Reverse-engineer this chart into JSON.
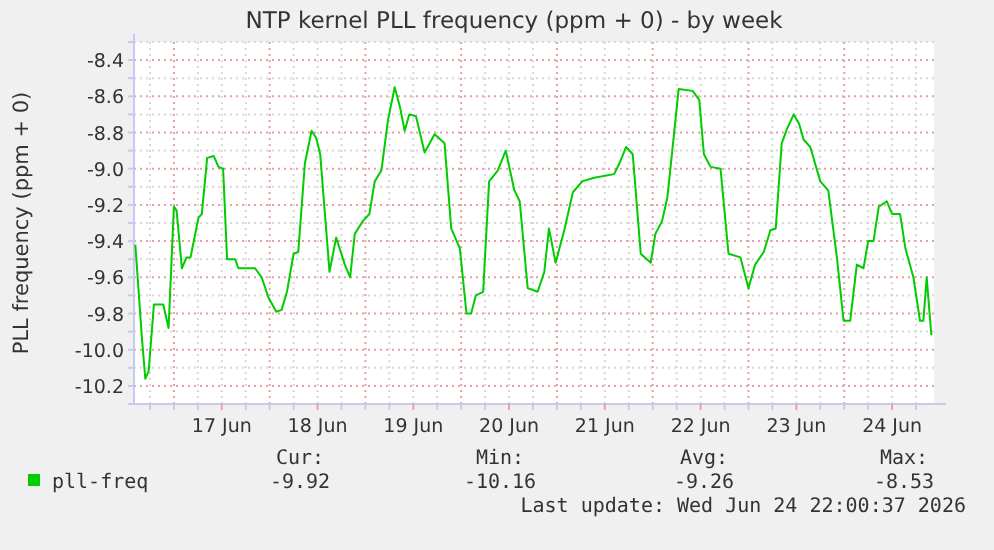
{
  "chart_data": {
    "type": "line",
    "title": "NTP kernel PLL frequency (ppm + 0) - by week",
    "ylabel": "PLL frequency (ppm + 0)",
    "x": [
      "2026-06-16T14:20",
      "2026-06-16T16:00",
      "2026-06-16T16:50",
      "2026-06-16T17:40",
      "2026-06-16T19:00",
      "2026-06-16T21:20",
      "2026-06-16T22:40",
      "2026-06-17T00:00",
      "2026-06-17T00:40",
      "2026-06-17T02:00",
      "2026-06-17T03:10",
      "2026-06-17T04:10",
      "2026-06-17T06:10",
      "2026-06-17T07:00",
      "2026-06-17T08:20",
      "2026-06-17T10:00",
      "2026-06-17T11:10",
      "2026-06-17T12:20",
      "2026-06-17T13:20",
      "2026-06-17T15:20",
      "2026-06-17T16:10",
      "2026-06-17T20:20",
      "2026-06-17T22:00",
      "2026-06-17T23:40",
      "2026-06-18T01:40",
      "2026-06-18T03:00",
      "2026-06-18T04:20",
      "2026-06-18T06:00",
      "2026-06-18T07:10",
      "2026-06-18T08:50",
      "2026-06-18T10:30",
      "2026-06-18T11:40",
      "2026-06-18T12:40",
      "2026-06-18T15:00",
      "2026-06-18T16:40",
      "2026-06-18T18:50",
      "2026-06-18T20:10",
      "2026-06-18T21:20",
      "2026-06-18T23:20",
      "2026-06-19T01:00",
      "2026-06-19T02:20",
      "2026-06-19T04:00",
      "2026-06-19T05:40",
      "2026-06-19T07:20",
      "2026-06-19T08:40",
      "2026-06-19T09:50",
      "2026-06-19T11:00",
      "2026-06-19T12:40",
      "2026-06-19T14:50",
      "2026-06-19T17:20",
      "2026-06-19T19:50",
      "2026-06-19T21:30",
      "2026-06-19T23:40",
      "2026-06-20T01:20",
      "2026-06-20T02:30",
      "2026-06-20T03:40",
      "2026-06-20T05:30",
      "2026-06-20T07:00",
      "2026-06-20T09:10",
      "2026-06-20T11:10",
      "2026-06-20T13:20",
      "2026-06-20T14:40",
      "2026-06-20T16:40",
      "2026-06-20T19:10",
      "2026-06-20T20:50",
      "2026-06-20T22:00",
      "2026-06-20T23:40",
      "2026-06-21T01:50",
      "2026-06-21T04:00",
      "2026-06-21T06:20",
      "2026-06-21T09:20",
      "2026-06-21T14:20",
      "2026-06-21T15:40",
      "2026-06-21T17:20",
      "2026-06-21T19:00",
      "2026-06-21T21:00",
      "2026-06-21T23:30",
      "2026-06-22T00:40",
      "2026-06-22T02:20",
      "2026-06-22T03:40",
      "2026-06-22T05:20",
      "2026-06-22T06:30",
      "2026-06-22T10:00",
      "2026-06-22T11:40",
      "2026-06-22T12:50",
      "2026-06-22T14:30",
      "2026-06-22T17:00",
      "2026-06-22T19:00",
      "2026-06-22T22:00",
      "2026-06-23T00:00",
      "2026-06-23T01:40",
      "2026-06-23T03:50",
      "2026-06-23T05:30",
      "2026-06-23T06:50",
      "2026-06-23T08:20",
      "2026-06-23T09:40",
      "2026-06-23T11:20",
      "2026-06-23T12:40",
      "2026-06-23T13:50",
      "2026-06-23T15:30",
      "2026-06-23T18:00",
      "2026-06-23T20:00",
      "2026-06-23T22:10",
      "2026-06-23T23:50",
      "2026-06-24T01:30",
      "2026-06-24T03:10",
      "2026-06-24T04:50",
      "2026-06-24T06:00",
      "2026-06-24T07:20",
      "2026-06-24T08:40",
      "2026-06-24T10:40",
      "2026-06-24T12:00",
      "2026-06-24T14:00",
      "2026-06-24T15:20",
      "2026-06-24T17:20",
      "2026-06-24T19:00",
      "2026-06-24T19:50",
      "2026-06-24T20:40",
      "2026-06-24T21:50"
    ],
    "series": [
      {
        "name": "pll-freq",
        "color": "#00cc00",
        "values": [
          -9.42,
          -9.94,
          -10.16,
          -10.12,
          -9.75,
          -9.75,
          -9.88,
          -9.21,
          -9.23,
          -9.55,
          -9.49,
          -9.49,
          -9.27,
          -9.25,
          -8.94,
          -8.93,
          -8.99,
          -9.0,
          -9.5,
          -9.5,
          -9.55,
          -9.55,
          -9.6,
          -9.71,
          -9.79,
          -9.78,
          -9.68,
          -9.47,
          -9.46,
          -8.97,
          -8.79,
          -8.83,
          -8.92,
          -9.57,
          -9.38,
          -9.53,
          -9.6,
          -9.36,
          -9.29,
          -9.25,
          -9.07,
          -9.01,
          -8.73,
          -8.55,
          -8.66,
          -8.79,
          -8.7,
          -8.71,
          -8.91,
          -8.81,
          -8.86,
          -9.33,
          -9.44,
          -9.8,
          -9.8,
          -9.7,
          -9.68,
          -9.07,
          -9.01,
          -8.9,
          -9.12,
          -9.18,
          -9.66,
          -9.68,
          -9.57,
          -9.33,
          -9.52,
          -9.34,
          -9.13,
          -9.07,
          -9.05,
          -9.03,
          -8.97,
          -8.88,
          -8.92,
          -9.47,
          -9.52,
          -9.36,
          -9.29,
          -9.16,
          -8.81,
          -8.56,
          -8.57,
          -8.62,
          -8.92,
          -8.99,
          -9.0,
          -9.47,
          -9.49,
          -9.66,
          -9.53,
          -9.46,
          -9.34,
          -9.33,
          -8.86,
          -8.78,
          -8.7,
          -8.75,
          -8.84,
          -8.88,
          -9.07,
          -9.12,
          -9.49,
          -9.84,
          -9.84,
          -9.53,
          -9.55,
          -9.4,
          -9.4,
          -9.21,
          -9.18,
          -9.25,
          -9.25,
          -9.44,
          -9.6,
          -9.84,
          -9.84,
          -9.6,
          -9.92
        ]
      }
    ],
    "xlim": [
      "2026-06-16T14:00",
      "2026-06-24T22:30"
    ],
    "xticks": [
      {
        "value": "2026-06-16T18:00",
        "label": null
      },
      {
        "value": "2026-06-17T00:00",
        "label": null
      },
      {
        "value": "2026-06-17T06:00",
        "label": null
      },
      {
        "value": "2026-06-17T12:00",
        "label": "17 Jun"
      },
      {
        "value": "2026-06-17T18:00",
        "label": null
      },
      {
        "value": "2026-06-18T00:00",
        "label": null
      },
      {
        "value": "2026-06-18T06:00",
        "label": null
      },
      {
        "value": "2026-06-18T12:00",
        "label": "18 Jun"
      },
      {
        "value": "2026-06-18T18:00",
        "label": null
      },
      {
        "value": "2026-06-19T00:00",
        "label": null
      },
      {
        "value": "2026-06-19T06:00",
        "label": null
      },
      {
        "value": "2026-06-19T12:00",
        "label": "19 Jun"
      },
      {
        "value": "2026-06-19T18:00",
        "label": null
      },
      {
        "value": "2026-06-20T00:00",
        "label": null
      },
      {
        "value": "2026-06-20T06:00",
        "label": null
      },
      {
        "value": "2026-06-20T12:00",
        "label": "20 Jun"
      },
      {
        "value": "2026-06-20T18:00",
        "label": null
      },
      {
        "value": "2026-06-21T00:00",
        "label": null
      },
      {
        "value": "2026-06-21T06:00",
        "label": null
      },
      {
        "value": "2026-06-21T12:00",
        "label": "21 Jun"
      },
      {
        "value": "2026-06-21T18:00",
        "label": null
      },
      {
        "value": "2026-06-22T00:00",
        "label": null
      },
      {
        "value": "2026-06-22T06:00",
        "label": null
      },
      {
        "value": "2026-06-22T12:00",
        "label": "22 Jun"
      },
      {
        "value": "2026-06-22T18:00",
        "label": null
      },
      {
        "value": "2026-06-23T00:00",
        "label": null
      },
      {
        "value": "2026-06-23T06:00",
        "label": null
      },
      {
        "value": "2026-06-23T12:00",
        "label": "23 Jun"
      },
      {
        "value": "2026-06-23T18:00",
        "label": null
      },
      {
        "value": "2026-06-24T00:00",
        "label": null
      },
      {
        "value": "2026-06-24T06:00",
        "label": null
      },
      {
        "value": "2026-06-24T12:00",
        "label": "24 Jun"
      },
      {
        "value": "2026-06-24T18:00",
        "label": null
      }
    ],
    "ylim": [
      -10.3,
      -8.3
    ],
    "yticks": [
      {
        "value": -10.3,
        "label": null
      },
      {
        "value": -10.2,
        "label": "-10.2"
      },
      {
        "value": -10.1,
        "label": null
      },
      {
        "value": -10,
        "label": "-10.0"
      },
      {
        "value": -9.9,
        "label": null
      },
      {
        "value": -9.8,
        "label": "-9.8"
      },
      {
        "value": -9.7,
        "label": null
      },
      {
        "value": -9.6,
        "label": "-9.6"
      },
      {
        "value": -9.5,
        "label": null
      },
      {
        "value": -9.4,
        "label": "-9.4"
      },
      {
        "value": -9.3,
        "label": null
      },
      {
        "value": -9.2,
        "label": "-9.2"
      },
      {
        "value": -9.1,
        "label": null
      },
      {
        "value": -9,
        "label": "-9.0"
      },
      {
        "value": -8.9,
        "label": null
      },
      {
        "value": -8.8,
        "label": "-8.8"
      },
      {
        "value": -8.7,
        "label": null
      },
      {
        "value": -8.6,
        "label": "-8.6"
      },
      {
        "value": -8.5,
        "label": null
      },
      {
        "value": -8.4,
        "label": "-8.4"
      },
      {
        "value": -8.3,
        "label": null
      }
    ],
    "grid": true,
    "legend": "bottom left",
    "annotations": [
      "Cur:",
      "-9.92",
      "Min:",
      "-10.16",
      "Avg:",
      "-9.26",
      "Max:",
      "-8.53",
      "Last update: Wed Jun 24 22:00:37 2026"
    ]
  }
}
